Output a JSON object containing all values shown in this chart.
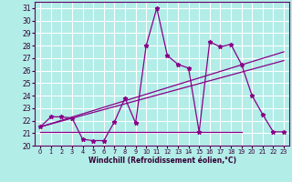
{
  "xlabel": "Windchill (Refroidissement éolien,°C)",
  "background_color": "#b2ede8",
  "grid_color": "#ffffff",
  "line_color": "#880088",
  "xlim": [
    -0.5,
    23.5
  ],
  "ylim": [
    20,
    31.5
  ],
  "xticks": [
    0,
    1,
    2,
    3,
    4,
    5,
    6,
    7,
    8,
    9,
    10,
    11,
    12,
    13,
    14,
    15,
    16,
    17,
    18,
    19,
    20,
    21,
    22,
    23
  ],
  "yticks": [
    20,
    21,
    22,
    23,
    24,
    25,
    26,
    27,
    28,
    29,
    30,
    31
  ],
  "line1_x": [
    0,
    1,
    2,
    3,
    4,
    5,
    6,
    7,
    8,
    9,
    10,
    11,
    12,
    13,
    14,
    15,
    16,
    17,
    18,
    19,
    20,
    21,
    22,
    23
  ],
  "line1_y": [
    21.5,
    22.3,
    22.3,
    22.2,
    20.5,
    20.4,
    20.4,
    21.9,
    23.8,
    21.8,
    28.0,
    31.0,
    27.2,
    26.5,
    26.2,
    21.1,
    28.3,
    27.9,
    28.1,
    26.5,
    24.0,
    22.5,
    21.1,
    21.1
  ],
  "line2_x": [
    0,
    19
  ],
  "line2_y": [
    21.1,
    21.1
  ],
  "line3_x": [
    0,
    23
  ],
  "line3_y": [
    21.5,
    26.8
  ],
  "line4_x": [
    0,
    23
  ],
  "line4_y": [
    21.5,
    27.5
  ]
}
